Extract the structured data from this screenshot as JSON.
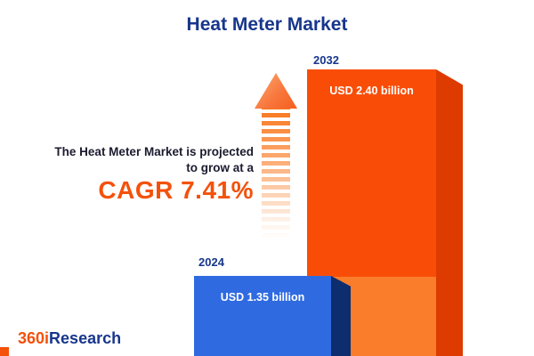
{
  "title": "Heat Meter Market",
  "annotation": {
    "line1": "The Heat Meter Market is projected",
    "line2": "to grow at a",
    "cagr_label": "CAGR 7.41%"
  },
  "logo": {
    "brand_orange": "360i",
    "brand_navy": "Research"
  },
  "colors": {
    "navy": "#17368c",
    "accent_orange": "#f4510b",
    "bar_2024_front": "#2f6ae1",
    "bar_2024_side": "#0c2e6e",
    "bar_2032_front": "#f94d07",
    "bar_2032_side": "#dd3b00",
    "bar_2032_overlap": "#fa7d2c"
  },
  "chart_data": {
    "type": "bar",
    "title": "Heat Meter Market",
    "categories": [
      "2024",
      "2032"
    ],
    "values": [
      1.35,
      2.4
    ],
    "unit": "USD billion",
    "value_labels": [
      "USD 1.35 billion",
      "USD 2.40 billion"
    ],
    "cagr_percent": 7.41,
    "annotation": "The Heat Meter Market is projected to grow at a CAGR 7.41%",
    "legend": "none",
    "grid": false,
    "orientation": "vertical"
  }
}
